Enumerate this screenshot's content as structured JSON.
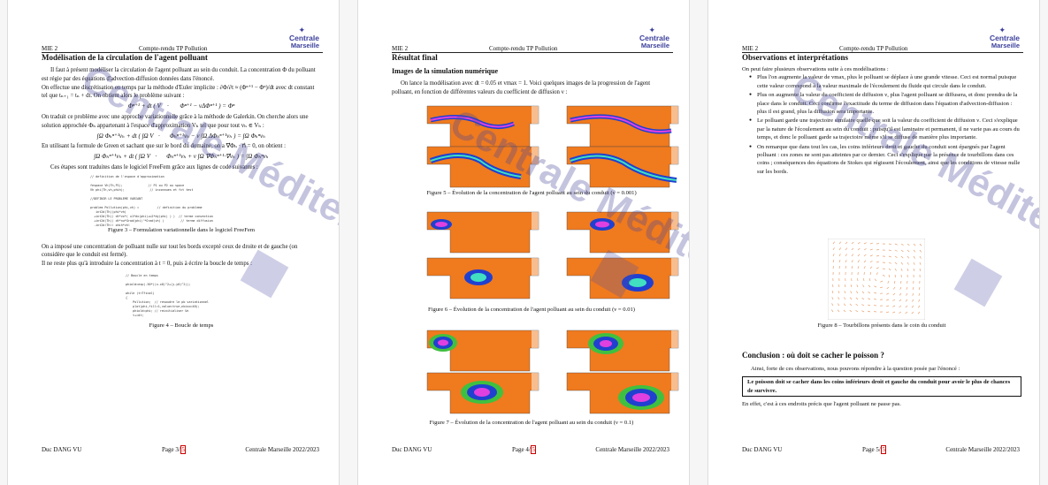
{
  "header": {
    "left": "MIE 2",
    "center": "Compte-rendu TP Pollution"
  },
  "logo": {
    "line1": "Centrale",
    "line2": "Marseille"
  },
  "footer": {
    "author": "Duc DANG VU",
    "year": "Centrale Marseille 2022/2023"
  },
  "watermark": "Centrale Méditerranée",
  "pages": [
    {
      "number": "3",
      "total": "5",
      "section": "Modélisation de la circulation de l'agent polluant",
      "p1": "Il faut à présent modéliser la circulation de l'agent polluant au sein du conduit. La concentration Φ du polluant est régie par des équations d'advection-diffusion données dans l'énoncé.",
      "p2": "On effectue une discrétisation en temps par la méthode d'Euler implicite : ∂Φ/∂t ≈ (Φⁿ⁺¹ − Φⁿ)/dt avec dt constant tel que tₙ₊₁ = tₙ + dt. On obtient alors le problème suivant :",
      "eq1": "Φⁿ⁺¹ + dt ( V⃗ · ∇⃗Φⁿ⁺¹ − νΔΦⁿ⁺¹ ) = Φⁿ",
      "p3": "On traduit ce problème avec une approche variationnelle grâce à la méthode de Galerkin. On cherche alors une solution approchée Φₕ appartenant à l'espace d'approximation Vₕ tel que pour tout vₕ ∈ Vₕ :",
      "eq2": "∫Ω Φₕⁿ⁺¹vₕ + dt ( ∫Ω V⃗·∇⃗Φₕⁿ⁺¹vₕ − ν ∫Ω ΔΦₕⁿ⁺¹vₕ ) = ∫Ω Φₕⁿvₕ",
      "p4": "En utilisant la formule de Green et sachant que sur le bord du domaine, on a ∇⃗Φₕ · n⃗ = 0, on obtient :",
      "eq3": "∫Ω Φₕⁿ⁺¹vₕ + dt ( ∫Ω V⃗·∇⃗Φₕⁿ⁺¹vₕ + ν ∫Ω ∇⃗Φₕⁿ⁺¹·∇⃗vₕ ) = ∫Ω Φₕⁿvₕ",
      "p5": "Ces étapes sont traduites dans le logiciel FreeFem grâce aux lignes de code suivantes :",
      "code1": "// definition de l'espace d'approximation\n\nfespace Vh(Th,P1);              // P1 ou P2 ou space\nVh phi(Th,vh,phih);              // inconnues et fct test\n\n//DEFINIR LE PROBLEME VARIANT\n\nproblem Pollution(phi,vh) =          // definition du probleme\n   int2d(Th)(phi*vh)\n  +int2d(Th)( dt*vx*( u1*dx(phi)+u2*dy(phi) ) )  // terme convection\n  +int2d(Th)( dt*nu*Grad(phi)'*Grad(vh) )         // terme diffusion\n  -int2d(Th)( phih*vh)\n  + on(1,phi=0);                                   // terme lineaire\n     solve(phi,vh,phih);",
      "caption3": "Figure 3 – Formulation variationnelle dans le logiciel FreeFem",
      "p6": "On a imposé une concentration de polluant nulle sur tout les bords excepté ceux de droite et de gauche (on considère que le conduit est fermé).",
      "p7": "Il ne reste plus qu'à introduire la concentration à t = 0, puis à écrire la boucle de temps :",
      "code2": "// Boucle en temps\n\nphiold=exp(-50*((x-x0)^2+(y-y0)^2));\n\nwhile (t<Tfinal)\n{\n    Pollution;  // resoudre le pb variationnel\n    plot(phi,fill=1,value=true,nbiso=40);\n    phiold=phi; // reinitialiser Un\n    t+=dt;\n}\nplot(phi,wait=1,fill=1,value=true,nbiso=40);",
      "caption4": "Figure 4 – Boucle de temps"
    },
    {
      "number": "4",
      "total": "5",
      "section": "Résultat final",
      "subsection": "Images de la simulation numérique",
      "intro": "On lance la modélisation avec dt = 0.05 et vmax = 1. Voici quelques images de la progression de l'agent polluant, en fonction de différentes valeurs du coefficient de diffusion ν :",
      "caption5": "Figure 5 – Évolution de la concentration de l'agent polluant au sein du conduit (ν = 0.001)",
      "caption6": "Figure 6 – Évolution de la concentration de l'agent polluant au sein du conduit (ν = 0.01)",
      "caption7": "Figure 7 – Évolution de la concentration de l'agent polluant au sein du conduit (ν = 0.1)"
    },
    {
      "number": "5",
      "total": "5",
      "section": "Observations et interprétations",
      "intro": "On peut faire plusieurs observations suite à ces modélisations :",
      "bullets": [
        "Plus l'on augmente la valeur de vmax, plus le polluant se déplace à une grande vitesse. Ceci est normal puisque cette valeur correspond à la valeur maximale de l'écoulement du fluide qui circule dans le conduit.",
        "Plus on augmente la valeur du coefficient de diffusion ν, plus l'agent polluant se diffusera, et donc prendra de la place dans le conduit. Ceci confirme l'exactitude du terme de diffusion dans l'équation d'advection-diffusion : plus il est grand, plus la diffusion sera importante.",
        "Le polluant garde une trajectoire similaire quelle que soit la valeur du coefficient de diffusion ν. Ceci s'explique par la nature de l'écoulement au sein du conduit : puisqu'il est laminaire et permanent, il ne varie pas au cours du temps, et donc le polluant garde sa trajectoire même s'il se diffuse de manière plus importante.",
        "On remarque que dans tout les cas, les coins inférieurs droit et gauche du conduit sont épargnés par l'agent polluant : ces zones ne sont pas atteintes par ce dernier. Ceci s'explique par la présence de tourbillons dans ces coins ; conséquences des équations de Stokes qui régissent l'écoulement, ainsi que les conditions de vitesse nulle sur les bords."
      ],
      "caption8": "Figure 8 – Tourbillons présents dans le coin du conduit",
      "conclusion_title": "Conclusion : où doit se cacher le poisson ?",
      "conclusion_intro": "Ainsi, forte de ces observations, nous pouvons répondre à la question posée par l'énoncé :",
      "answer": "Le poisson doit se cacher dans les coins inférieurs droit et gauche du conduit pour avoir le plus de chances de survivre.",
      "final": "En effet, c'est à ces endroits précis que l'agent polluant ne passe pas."
    }
  ],
  "colors": {
    "logo": "#3b3f9b",
    "watermark": "#46469b",
    "page_link": "#cc0000",
    "field_bg": "#f07a1e"
  }
}
